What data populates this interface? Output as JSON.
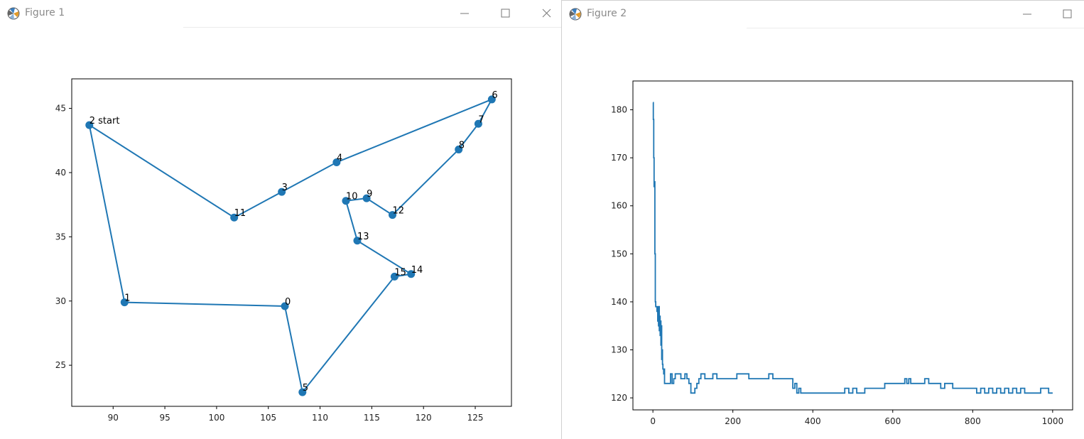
{
  "windows": [
    {
      "title": "Figure 1",
      "controls": [
        "minimize-icon",
        "maximize-icon",
        "close-icon"
      ],
      "chart_data": {
        "type": "line",
        "xlim": [
          86,
          128.5
        ],
        "ylim": [
          21.8,
          47.3
        ],
        "xticks": [
          90,
          95,
          100,
          105,
          110,
          115,
          120,
          125
        ],
        "yticks": [
          25,
          30,
          35,
          40,
          45
        ],
        "points": [
          {
            "label": "0",
            "x": 106.6,
            "y": 29.6
          },
          {
            "label": "1",
            "x": 91.1,
            "y": 29.9
          },
          {
            "label": "2 start",
            "x": 87.7,
            "y": 43.7
          },
          {
            "label": "3",
            "x": 106.3,
            "y": 38.5
          },
          {
            "label": "4",
            "x": 111.6,
            "y": 40.8
          },
          {
            "label": "5",
            "x": 108.3,
            "y": 22.9
          },
          {
            "label": "6",
            "x": 126.6,
            "y": 45.7
          },
          {
            "label": "7",
            "x": 125.3,
            "y": 43.8
          },
          {
            "label": "8",
            "x": 123.4,
            "y": 41.8
          },
          {
            "label": "9",
            "x": 114.5,
            "y": 38.0
          },
          {
            "label": "10",
            "x": 112.5,
            "y": 37.8
          },
          {
            "label": "11",
            "x": 101.7,
            "y": 36.5
          },
          {
            "label": "12",
            "x": 117.0,
            "y": 36.7
          },
          {
            "label": "13",
            "x": 113.6,
            "y": 34.7
          },
          {
            "label": "14",
            "x": 118.8,
            "y": 32.1
          },
          {
            "label": "15",
            "x": 117.2,
            "y": 31.9
          }
        ],
        "route": [
          2,
          11,
          3,
          4,
          6,
          7,
          8,
          12,
          9,
          10,
          13,
          14,
          15,
          5,
          0,
          1,
          2
        ],
        "color": "#1f77b4"
      }
    },
    {
      "title": "Figure 2",
      "controls": [
        "minimize-icon",
        "maximize-icon"
      ],
      "chart_data": {
        "type": "line",
        "xlim": [
          -50,
          1050
        ],
        "ylim": [
          117.5,
          186
        ],
        "xticks": [
          0,
          200,
          400,
          600,
          800,
          1000
        ],
        "yticks": [
          120,
          130,
          140,
          150,
          160,
          170,
          180
        ],
        "color": "#1f77b4",
        "series": [
          {
            "x": [
              0,
              1,
              2,
              3,
              4,
              5,
              6,
              7,
              8,
              9,
              10,
              11,
              12,
              13,
              14,
              15,
              16,
              17,
              18,
              19,
              20,
              21,
              22,
              23,
              24,
              25,
              26,
              27,
              28,
              29,
              30,
              32,
              34,
              36,
              40,
              44,
              48,
              52,
              56,
              60,
              65,
              70,
              75,
              80,
              85,
              90,
              95,
              100,
              105,
              110,
              115,
              120,
              125,
              130,
              135,
              140,
              145,
              150,
              160,
              170,
              180,
              190,
              200,
              210,
              220,
              230,
              240,
              250,
              260,
              270,
              280,
              290,
              300,
              310,
              320,
              330,
              340,
              350,
              355,
              360,
              365,
              370,
              380,
              390,
              400,
              410,
              420,
              430,
              440,
              450,
              460,
              470,
              480,
              490,
              500,
              510,
              520,
              530,
              540,
              550,
              560,
              570,
              580,
              590,
              600,
              610,
              620,
              630,
              635,
              640,
              645,
              650,
              660,
              670,
              680,
              690,
              700,
              710,
              720,
              730,
              740,
              750,
              760,
              770,
              780,
              790,
              800,
              810,
              820,
              830,
              840,
              850,
              860,
              870,
              880,
              890,
              900,
              910,
              920,
              930,
              940,
              950,
              960,
              970,
              980,
              990,
              1000
            ],
            "y": [
              181.5,
              178,
              170,
              164,
              165,
              150,
              140,
              139,
              139,
              139,
              138,
              139,
              136,
              139,
              135,
              139,
              134,
              137,
              133,
              136,
              131,
              135,
              128,
              130,
              127,
              126,
              126,
              125,
              126,
              123,
              123,
              123,
              123,
              123,
              123,
              125,
              123,
              124,
              125,
              125,
              125,
              124,
              124,
              125,
              124,
              123,
              121,
              121,
              122,
              123,
              124,
              125,
              125,
              124,
              124,
              124,
              124,
              125,
              124,
              124,
              124,
              124,
              124,
              125,
              125,
              125,
              124,
              124,
              124,
              124,
              124,
              125,
              124,
              124,
              124,
              124,
              124,
              122,
              123,
              121,
              122,
              121,
              121,
              121,
              121,
              121,
              121,
              121,
              121,
              121,
              121,
              121,
              122,
              121,
              122,
              121,
              121,
              122,
              122,
              122,
              122,
              122,
              123,
              123,
              123,
              123,
              123,
              124,
              123,
              124,
              123,
              123,
              123,
              123,
              124,
              123,
              123,
              123,
              122,
              123,
              123,
              122,
              122,
              122,
              122,
              122,
              122,
              121,
              122,
              121,
              122,
              121,
              122,
              121,
              122,
              121,
              122,
              121,
              122,
              121,
              121,
              121,
              121,
              122,
              122,
              121,
              121
            ]
          }
        ]
      }
    }
  ]
}
